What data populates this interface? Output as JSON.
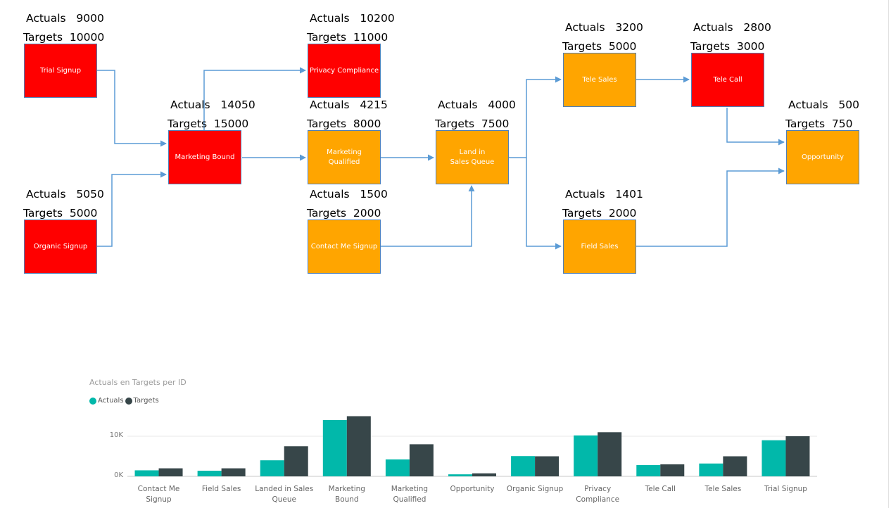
{
  "diagram": {
    "actuals_prefix": "Actuals",
    "targets_prefix": "Targets",
    "nodes": [
      {
        "id": "trial",
        "label": "Trial Signup",
        "actuals": "9000",
        "targets": "10000",
        "color": "#ff0000"
      },
      {
        "id": "organic",
        "label": "Organic Signup",
        "actuals": "5050",
        "targets": "5000",
        "color": "#ff0000"
      },
      {
        "id": "mbound",
        "label": "Marketing Bound",
        "actuals": "14050",
        "targets": "15000",
        "color": "#ff0000"
      },
      {
        "id": "privacy",
        "label": "Privacy Compliance",
        "actuals": "10200",
        "targets": "11000",
        "color": "#ff0000"
      },
      {
        "id": "mqual",
        "label": "Marketing\nQualified",
        "actuals": "4215",
        "targets": "8000",
        "color": "#ffa500"
      },
      {
        "id": "contact",
        "label": "Contact Me Signup",
        "actuals": "1500",
        "targets": "2000",
        "color": "#ffa500"
      },
      {
        "id": "landq",
        "label": "Land in\nSales Queue",
        "actuals": "4000",
        "targets": "7500",
        "color": "#ffa500"
      },
      {
        "id": "telesales",
        "label": "Tele Sales",
        "actuals": "3200",
        "targets": "5000",
        "color": "#ffa500"
      },
      {
        "id": "telecall",
        "label": "Tele Call",
        "actuals": "2800",
        "targets": "3000",
        "color": "#ff0000"
      },
      {
        "id": "fieldsales",
        "label": "Field Sales",
        "actuals": "1401",
        "targets": "2000",
        "color": "#ffa500"
      },
      {
        "id": "opportunity",
        "label": "Opportunity",
        "actuals": "500",
        "targets": "750",
        "color": "#ffa500"
      }
    ]
  },
  "chart_data": {
    "type": "bar",
    "title": "Actuals en Targets per ID",
    "categories": [
      "Contact Me\nSignup",
      "Field Sales",
      "Landed in Sales\nQueue",
      "Marketing\nBound",
      "Marketing\nQualified",
      "Opportunity",
      "Organic Signup",
      "Privacy\nCompliance",
      "Tele Call",
      "Tele Sales",
      "Trial Signup"
    ],
    "series": [
      {
        "name": "Actuals",
        "color": "#01b8aa",
        "values": [
          1500,
          1401,
          4000,
          14050,
          4215,
          500,
          5050,
          10200,
          2800,
          3200,
          9000
        ]
      },
      {
        "name": "Targets",
        "color": "#374649",
        "values": [
          2000,
          2000,
          7500,
          15000,
          8000,
          750,
          5000,
          11000,
          3000,
          5000,
          10000
        ]
      }
    ],
    "yticks": [
      {
        "value": 0,
        "label": "0K"
      },
      {
        "value": 10000,
        "label": "10K"
      }
    ],
    "ylim": [
      0,
      16000
    ],
    "legend": "top-left",
    "grid": true
  }
}
